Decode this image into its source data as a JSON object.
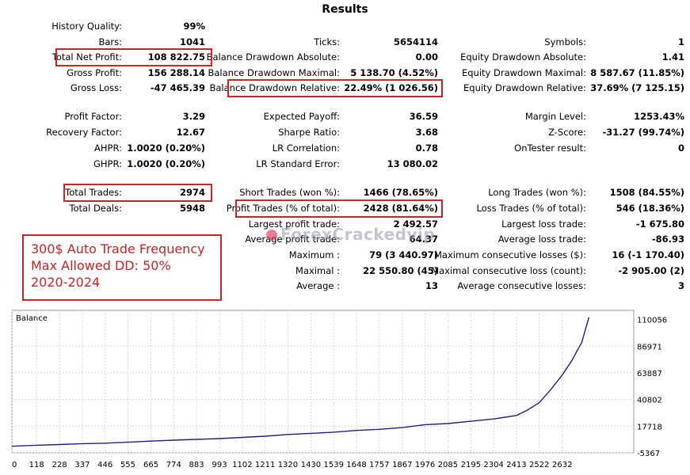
{
  "title": "Results",
  "stats": {
    "history_quality": {
      "label": "History Quality:",
      "value": "99%"
    },
    "bars": {
      "label": "Bars:",
      "value": "1041"
    },
    "total_net_profit": {
      "label": "Total Net Profit:",
      "value": "108 822.75"
    },
    "gross_profit": {
      "label": "Gross Profit:",
      "value": "156 288.14"
    },
    "gross_loss": {
      "label": "Gross Loss:",
      "value": "-47 465.39"
    },
    "profit_factor": {
      "label": "Profit Factor:",
      "value": "3.29"
    },
    "recovery_factor": {
      "label": "Recovery Factor:",
      "value": "12.67"
    },
    "ahpr": {
      "label": "AHPR:",
      "value": "1.0020 (0.20%)"
    },
    "ghpr": {
      "label": "GHPR:",
      "value": "1.0020 (0.20%)"
    },
    "total_trades": {
      "label": "Total Trades:",
      "value": "2974"
    },
    "total_deals": {
      "label": "Total Deals:",
      "value": "5948"
    },
    "ticks": {
      "label": "Ticks:",
      "value": "5654114"
    },
    "balance_dd_abs": {
      "label": "Balance Drawdown Absolute:",
      "value": "0.00"
    },
    "balance_dd_max": {
      "label": "Balance Drawdown Maximal:",
      "value": "5 138.70 (4.52%)"
    },
    "balance_dd_rel": {
      "label": "Balance Drawdown Relative:",
      "value": "22.49% (1 026.56)"
    },
    "expected_payoff": {
      "label": "Expected Payoff:",
      "value": "36.59"
    },
    "sharpe": {
      "label": "Sharpe Ratio:",
      "value": "3.68"
    },
    "lr_corr": {
      "label": "LR Correlation:",
      "value": "0.78"
    },
    "lr_err": {
      "label": "LR Standard Error:",
      "value": "13 080.02"
    },
    "short_trades": {
      "label": "Short Trades (won %):",
      "value": "1466 (78.65%)"
    },
    "profit_trades": {
      "label": "Profit Trades (% of total):",
      "value": "2428 (81.64%)"
    },
    "largest_profit": {
      "label": "Largest profit trade:",
      "value": "2 492.57"
    },
    "avg_profit": {
      "label": "Average profit trade:",
      "value": "64.37"
    },
    "max_wins": {
      "label": "Maximum :",
      "value": "79 (3 440.97)"
    },
    "maximal_wins": {
      "label": "Maximal :",
      "value": "22 550.80 (45)"
    },
    "avg_wins": {
      "label": "Average :",
      "value": "13"
    },
    "symbols": {
      "label": "Symbols:",
      "value": "1"
    },
    "equity_dd_abs": {
      "label": "Equity Drawdown Absolute:",
      "value": "1.41"
    },
    "equity_dd_max": {
      "label": "Equity Drawdown Maximal:",
      "value": "8 587.67 (11.85%)"
    },
    "equity_dd_rel": {
      "label": "Equity Drawdown Relative:",
      "value": "37.69% (7 125.15)"
    },
    "margin_level": {
      "label": "Margin Level:",
      "value": "1253.43%"
    },
    "z_score": {
      "label": "Z-Score:",
      "value": "-31.27 (99.74%)"
    },
    "ontester": {
      "label": "OnTester result:",
      "value": "0"
    },
    "long_trades": {
      "label": "Long Trades (won %):",
      "value": "1508 (84.55%)"
    },
    "loss_trades": {
      "label": "Loss Trades (% of total):",
      "value": "546 (18.36%)"
    },
    "largest_loss": {
      "label": "Largest loss trade:",
      "value": "-1 675.80"
    },
    "avg_loss": {
      "label": "Average loss trade:",
      "value": "-86.93"
    },
    "max_cons_loss_usd": {
      "label": "Maximum consecutive losses ($):",
      "value": "16 (-1 170.40)"
    },
    "max_cons_loss_count": {
      "label": "Maximal consecutive loss (count):",
      "value": "-2 905.00 (2)"
    },
    "avg_cons_losses": {
      "label": "Average consecutive losses:",
      "value": "3"
    }
  },
  "note": {
    "line1": "300$ Auto Trade Frequency",
    "line2": "Max Allowed DD: 50%",
    "line3": "2020-2024"
  },
  "watermark": "ForexCrackedvip",
  "colors": {
    "highlight_box": "#d42020",
    "balance_line": "#1f1f8f"
  },
  "chart_data": {
    "type": "line",
    "title": "Balance",
    "x_ticks": [
      "0",
      "118",
      "228",
      "337",
      "446",
      "555",
      "665",
      "774",
      "883",
      "993",
      "1102",
      "1211",
      "1320",
      "1430",
      "1539",
      "1648",
      "1757",
      "1867",
      "1976",
      "2085",
      "2195",
      "2304",
      "2413",
      "2522",
      "2632"
    ],
    "y_ticks": [
      "110056",
      "86971",
      "63887",
      "40802",
      "17718",
      "-5367"
    ],
    "ylim": [
      -5367,
      118000
    ],
    "xlim": [
      0,
      2974
    ],
    "series": [
      {
        "x": [
          0,
          118,
          228,
          337,
          446,
          555,
          665,
          774,
          883,
          993,
          1102,
          1211,
          1320,
          1430,
          1539,
          1648,
          1757,
          1867,
          1976,
          2085,
          2195,
          2304,
          2413,
          2460,
          2522,
          2580,
          2632,
          2680,
          2700,
          2725,
          2745,
          2760
        ],
        "y": [
          300,
          1200,
          1800,
          2600,
          3000,
          3800,
          4800,
          5600,
          6300,
          7000,
          8000,
          9000,
          10500,
          11500,
          12500,
          14000,
          15000,
          16500,
          19000,
          20000,
          22000,
          24000,
          27000,
          31000,
          38000,
          50000,
          62000,
          75000,
          82000,
          90000,
          103000,
          112000
        ]
      }
    ]
  }
}
